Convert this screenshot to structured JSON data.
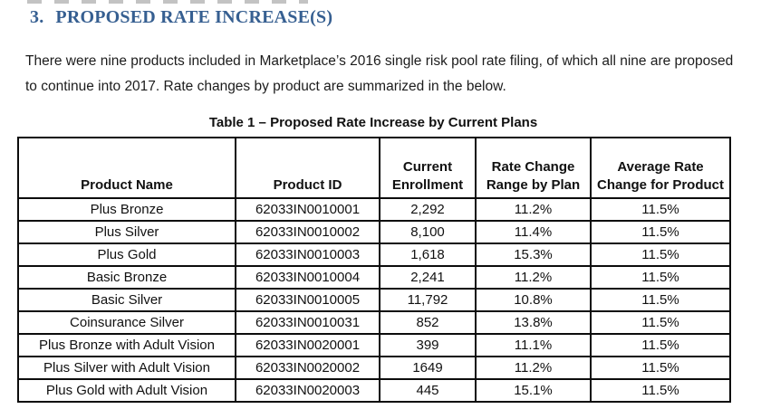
{
  "colors": {
    "heading_blue": "#365F91",
    "body_text": "#1c1c1c",
    "table_border": "#0c0c0c"
  },
  "heading": {
    "number": "3.",
    "title": "PROPOSED RATE INCREASE(S)"
  },
  "paragraph": "There were nine products included in Marketplace’s 2016 single risk pool rate filing, of which all nine are proposed to continue into 2017. Rate changes by product are summarized in the below.",
  "table": {
    "caption": "Table 1 – Proposed Rate Increase by Current Plans",
    "columns": [
      "Product Name",
      "Product ID",
      "Current Enrollment",
      "Rate Change Range by Plan",
      "Average Rate Change for Product"
    ],
    "rows": [
      [
        "Plus Bronze",
        "62033IN0010001",
        "2,292",
        "11.2%",
        "11.5%"
      ],
      [
        "Plus Silver",
        "62033IN0010002",
        "8,100",
        "11.4%",
        "11.5%"
      ],
      [
        "Plus Gold",
        "62033IN0010003",
        "1,618",
        "15.3%",
        "11.5%"
      ],
      [
        "Basic Bronze",
        "62033IN0010004",
        "2,241",
        "11.2%",
        "11.5%"
      ],
      [
        "Basic Silver",
        "62033IN0010005",
        "11,792",
        "10.8%",
        "11.5%"
      ],
      [
        "Coinsurance Silver",
        "62033IN0010031",
        "852",
        "13.8%",
        "11.5%"
      ],
      [
        "Plus Bronze with Adult Vision",
        "62033IN0020001",
        "399",
        "11.1%",
        "11.5%"
      ],
      [
        "Plus Silver with Adult Vision",
        "62033IN0020002",
        "1649",
        "11.2%",
        "11.5%"
      ],
      [
        "Plus Gold with Adult Vision",
        "62033IN0020003",
        "445",
        "15.1%",
        "11.5%"
      ]
    ]
  }
}
